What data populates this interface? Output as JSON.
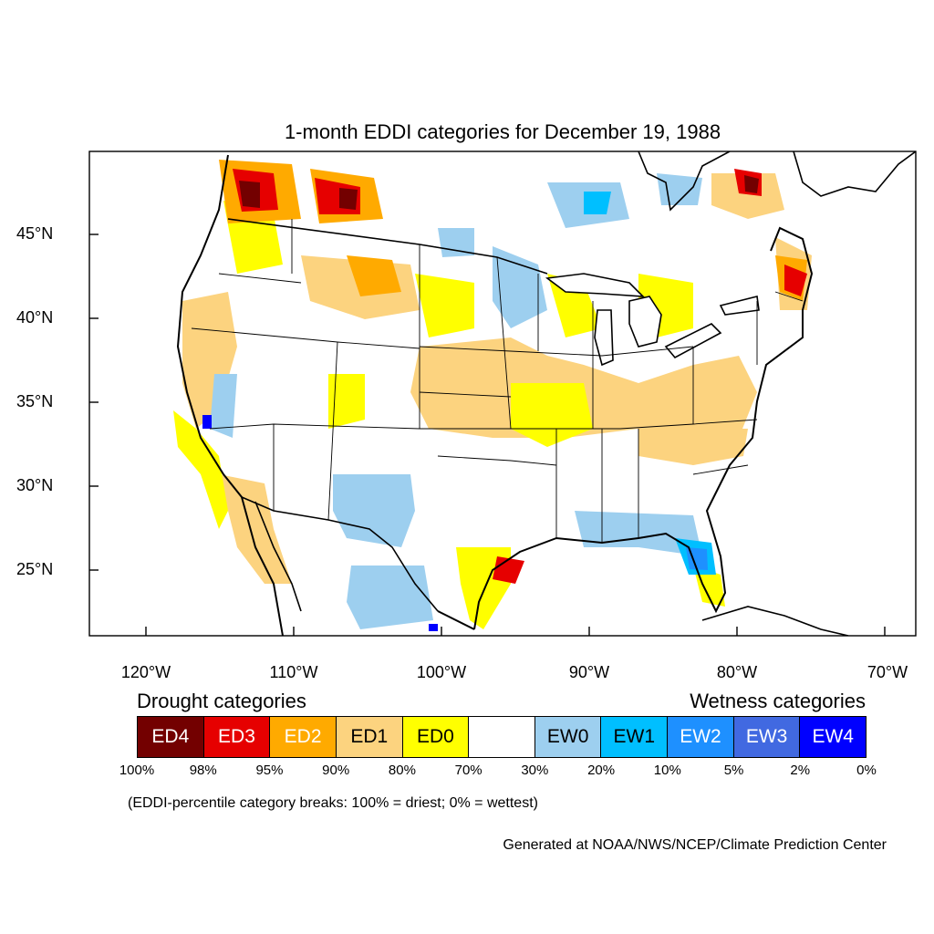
{
  "title": "1-month EDDI categories for December 19, 1988",
  "axes": {
    "lat_labels": [
      "45°N",
      "40°N",
      "35°N",
      "30°N",
      "25°N"
    ],
    "lon_labels": [
      "120°W",
      "110°W",
      "100°W",
      "90°W",
      "80°W",
      "70°W"
    ]
  },
  "legend": {
    "drought_heading": "Drought categories",
    "wetness_heading": "Wetness categories",
    "categories": [
      {
        "label": "ED4",
        "color": "#730000",
        "text_color": "#ffffff"
      },
      {
        "label": "ED3",
        "color": "#e60000",
        "text_color": "#ffffff"
      },
      {
        "label": "ED2",
        "color": "#ffaa00",
        "text_color": "#ffffff"
      },
      {
        "label": "ED1",
        "color": "#fcd37f",
        "text_color": "#000000"
      },
      {
        "label": "ED0",
        "color": "#ffff00",
        "text_color": "#000000"
      },
      {
        "label": "",
        "color": "#ffffff",
        "text_color": "#000000"
      },
      {
        "label": "EW0",
        "color": "#9dcfef",
        "text_color": "#000000"
      },
      {
        "label": "EW1",
        "color": "#00bfff",
        "text_color": "#000000"
      },
      {
        "label": "EW2",
        "color": "#1e90ff",
        "text_color": "#ffffff"
      },
      {
        "label": "EW3",
        "color": "#4169e1",
        "text_color": "#ffffff"
      },
      {
        "label": "EW4",
        "color": "#0000ff",
        "text_color": "#ffffff"
      }
    ],
    "breaks": [
      "100%",
      "98%",
      "95%",
      "90%",
      "80%",
      "70%",
      "30%",
      "20%",
      "10%",
      "5%",
      "2%",
      "0%"
    ]
  },
  "note": "(EDDI-percentile category breaks: 100% = driest; 0% = wettest)",
  "credit": "Generated at NOAA/NWS/NCEP/Climate Prediction Center"
}
